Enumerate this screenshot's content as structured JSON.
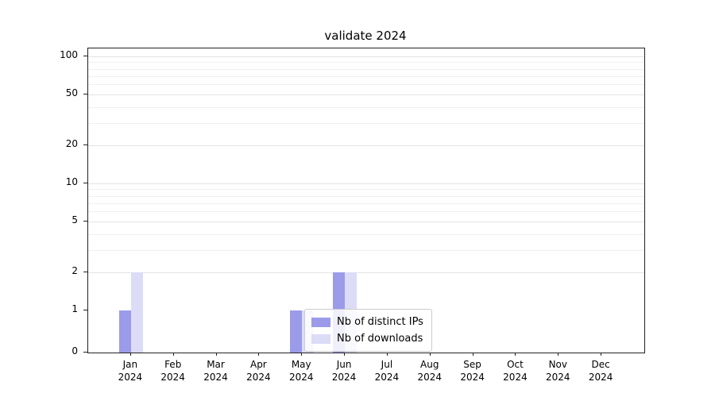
{
  "title": "validate 2024",
  "chart_data": {
    "type": "bar",
    "title": "validate 2024",
    "categories": [
      "Jan 2024",
      "Feb 2024",
      "Mar 2024",
      "Apr 2024",
      "May 2024",
      "Jun 2024",
      "Jul 2024",
      "Aug 2024",
      "Sep 2024",
      "Oct 2024",
      "Nov 2024",
      "Dec 2024"
    ],
    "series": [
      {
        "name": "Nb of distinct IPs",
        "color": "#9b9bea",
        "values": [
          1,
          0,
          0,
          0,
          1,
          2,
          0,
          0,
          0,
          0,
          0,
          0
        ]
      },
      {
        "name": "Nb of downloads",
        "color": "#dcdcf7",
        "values": [
          2,
          0,
          0,
          0,
          1,
          2,
          0,
          0,
          0,
          0,
          0,
          0
        ]
      }
    ],
    "xlabel": "",
    "ylabel": "",
    "yscale": "symlog",
    "yticks": [
      0,
      1,
      2,
      5,
      10,
      20,
      50,
      100
    ],
    "ylim": [
      0,
      115
    ],
    "grid": "horizontal",
    "legend_position": "lower center"
  }
}
